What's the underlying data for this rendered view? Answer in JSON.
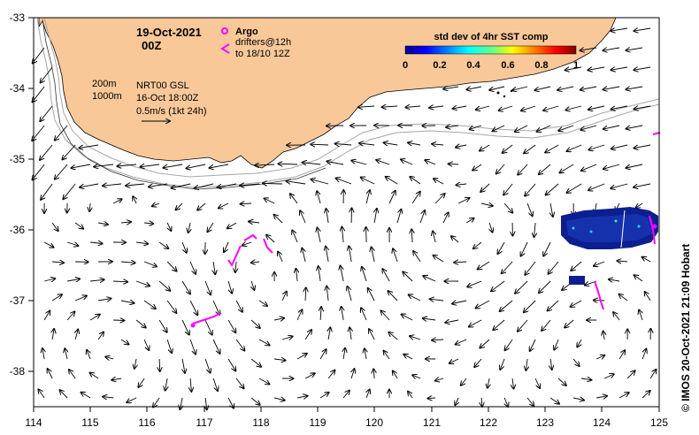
{
  "title": {
    "date": "19-Oct-2021",
    "hour": "00Z"
  },
  "legend_argo": {
    "argo_label": "Argo",
    "drifters_label": "drifters@12h",
    "drifters_range": "to 18/10 12Z"
  },
  "isobaths": {
    "shallow": "200m",
    "deep": "1000m"
  },
  "product": {
    "name": "NRT00 GSL",
    "time": "16-Oct 18:00Z",
    "scale_label": "0.5m/s (1kt 24h)"
  },
  "colorbar": {
    "title": "std dev of 4hr SST comp",
    "ticks": [
      "0",
      "0.2",
      "0.4",
      "0.6",
      "0.8",
      "1"
    ]
  },
  "credit": "© IMOS 20-Oct-2021 21:09 Hobart",
  "axes": {
    "x_ticks": [
      "114",
      "115",
      "116",
      "117",
      "118",
      "119",
      "120",
      "121",
      "122",
      "123",
      "124",
      "125"
    ],
    "y_ticks": [
      "-33",
      "-34",
      "-35",
      "-36",
      "-37",
      "-38"
    ],
    "x_range": [
      114,
      125
    ],
    "y_range": [
      -38.5,
      -33
    ]
  },
  "colors": {
    "land": "#f9c899",
    "argo": "#ff00ff",
    "shelf_contour": "#a6a6a6",
    "sst_patch": "#0d1f8f"
  }
}
